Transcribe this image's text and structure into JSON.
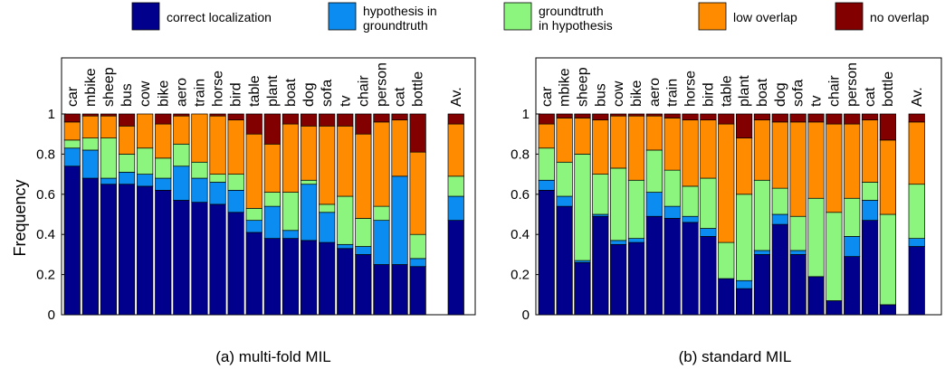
{
  "legend": [
    {
      "key": "correct",
      "lines": [
        "correct localization"
      ],
      "color": "#00008c"
    },
    {
      "key": "hyp_in_gt",
      "lines": [
        "hypothesis in",
        "groundtruth"
      ],
      "color": "#0a8cf0"
    },
    {
      "key": "gt_in_hyp",
      "lines": [
        "groundtruth",
        "in hypothesis"
      ],
      "color": "#8cf57d"
    },
    {
      "key": "low",
      "lines": [
        "low overlap"
      ],
      "color": "#ff8c00"
    },
    {
      "key": "none",
      "lines": [
        "no overlap"
      ],
      "color": "#820000"
    }
  ],
  "captions": [
    "(a) multi-fold MIL",
    "(b) standard MIL"
  ],
  "chart_data": [
    {
      "type": "bar",
      "stacked": true,
      "title": "",
      "caption": "(a) multi-fold MIL",
      "ylabel": "Frequency",
      "xlabel": "",
      "ylim": [
        0,
        1
      ],
      "yticks": [
        "0",
        "0.2",
        "0.4",
        "0.6",
        "0.8",
        "1"
      ],
      "categories": [
        "car",
        "mbike",
        "sheep",
        "bus",
        "cow",
        "bike",
        "aero",
        "train",
        "horse",
        "bird",
        "table",
        "plant",
        "boat",
        "dog",
        "sofa",
        "tv",
        "chair",
        "person",
        "cat",
        "bottle",
        "Av."
      ],
      "series": [
        {
          "name": "correct localization",
          "values": [
            0.74,
            0.68,
            0.65,
            0.65,
            0.64,
            0.62,
            0.57,
            0.56,
            0.55,
            0.51,
            0.41,
            0.38,
            0.38,
            0.37,
            0.36,
            0.33,
            0.3,
            0.25,
            0.25,
            0.24,
            0.47
          ]
        },
        {
          "name": "hypothesis in groundtruth",
          "values": [
            0.09,
            0.14,
            0.03,
            0.06,
            0.06,
            0.06,
            0.17,
            0.12,
            0.11,
            0.11,
            0.06,
            0.16,
            0.04,
            0.28,
            0.15,
            0.02,
            0.04,
            0.22,
            0.44,
            0.04,
            0.12
          ]
        },
        {
          "name": "groundtruth in hypothesis",
          "values": [
            0.04,
            0.06,
            0.2,
            0.09,
            0.13,
            0.1,
            0.11,
            0.08,
            0.04,
            0.08,
            0.06,
            0.07,
            0.19,
            0.02,
            0.04,
            0.24,
            0.14,
            0.07,
            0.0,
            0.12,
            0.1
          ]
        },
        {
          "name": "low overlap",
          "values": [
            0.09,
            0.11,
            0.11,
            0.14,
            0.17,
            0.17,
            0.14,
            0.24,
            0.29,
            0.27,
            0.37,
            0.24,
            0.34,
            0.27,
            0.39,
            0.35,
            0.42,
            0.42,
            0.28,
            0.41,
            0.26
          ]
        },
        {
          "name": "no overlap",
          "values": [
            0.04,
            0.01,
            0.01,
            0.06,
            0.0,
            0.05,
            0.01,
            0.0,
            0.01,
            0.03,
            0.1,
            0.15,
            0.05,
            0.06,
            0.06,
            0.06,
            0.1,
            0.04,
            0.03,
            0.19,
            0.05
          ]
        }
      ]
    },
    {
      "type": "bar",
      "stacked": true,
      "title": "",
      "caption": "(b) standard MIL",
      "ylabel": "",
      "xlabel": "",
      "ylim": [
        0,
        1
      ],
      "yticks": [
        "0",
        "0.2",
        "0.4",
        "0.6",
        "0.8",
        "1"
      ],
      "categories": [
        "car",
        "mbike",
        "sheep",
        "bus",
        "cow",
        "bike",
        "aero",
        "train",
        "horse",
        "bird",
        "table",
        "plant",
        "boat",
        "dog",
        "sofa",
        "tv",
        "chair",
        "person",
        "cat",
        "bottle",
        "Av."
      ],
      "series": [
        {
          "name": "correct localization",
          "values": [
            0.62,
            0.54,
            0.26,
            0.49,
            0.35,
            0.36,
            0.49,
            0.48,
            0.46,
            0.39,
            0.18,
            0.13,
            0.3,
            0.45,
            0.3,
            0.19,
            0.07,
            0.29,
            0.47,
            0.05,
            0.34
          ]
        },
        {
          "name": "hypothesis in groundtruth",
          "values": [
            0.05,
            0.05,
            0.01,
            0.01,
            0.02,
            0.02,
            0.12,
            0.06,
            0.03,
            0.04,
            0.0,
            0.04,
            0.02,
            0.05,
            0.02,
            0.0,
            0.0,
            0.1,
            0.1,
            0.0,
            0.04
          ]
        },
        {
          "name": "groundtruth in hypothesis",
          "values": [
            0.16,
            0.17,
            0.53,
            0.2,
            0.36,
            0.29,
            0.21,
            0.18,
            0.15,
            0.25,
            0.18,
            0.43,
            0.35,
            0.13,
            0.17,
            0.39,
            0.44,
            0.19,
            0.09,
            0.45,
            0.27
          ]
        },
        {
          "name": "low overlap",
          "values": [
            0.12,
            0.22,
            0.18,
            0.27,
            0.26,
            0.32,
            0.17,
            0.26,
            0.33,
            0.29,
            0.59,
            0.28,
            0.3,
            0.33,
            0.47,
            0.38,
            0.44,
            0.37,
            0.31,
            0.37,
            0.31
          ]
        },
        {
          "name": "no overlap",
          "values": [
            0.05,
            0.02,
            0.02,
            0.03,
            0.01,
            0.01,
            0.01,
            0.02,
            0.03,
            0.03,
            0.05,
            0.12,
            0.03,
            0.04,
            0.04,
            0.04,
            0.05,
            0.05,
            0.03,
            0.13,
            0.04
          ]
        }
      ]
    }
  ]
}
